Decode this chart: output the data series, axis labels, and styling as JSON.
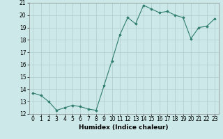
{
  "x": [
    0,
    1,
    2,
    3,
    4,
    5,
    6,
    7,
    8,
    9,
    10,
    11,
    12,
    13,
    14,
    15,
    16,
    17,
    18,
    19,
    20,
    21,
    22,
    23
  ],
  "y": [
    13.7,
    13.5,
    13.0,
    12.3,
    12.5,
    12.7,
    12.6,
    12.4,
    12.3,
    14.3,
    16.3,
    18.4,
    19.8,
    19.3,
    20.8,
    20.5,
    20.2,
    20.3,
    20.0,
    19.8,
    18.1,
    19.0,
    19.1,
    19.7
  ],
  "line_color": "#2e7d6e",
  "marker": "D",
  "marker_size": 1.8,
  "bg_color": "#cde8e8",
  "grid_color": "#b0cccc",
  "xlabel": "Humidex (Indice chaleur)",
  "ylim": [
    12,
    21
  ],
  "xlim": [
    -0.5,
    23.5
  ],
  "yticks": [
    12,
    13,
    14,
    15,
    16,
    17,
    18,
    19,
    20,
    21
  ],
  "xticks": [
    0,
    1,
    2,
    3,
    4,
    5,
    6,
    7,
    8,
    9,
    10,
    11,
    12,
    13,
    14,
    15,
    16,
    17,
    18,
    19,
    20,
    21,
    22,
    23
  ],
  "xlabel_fontsize": 6.5,
  "tick_fontsize": 5.5,
  "linewidth": 0.8
}
